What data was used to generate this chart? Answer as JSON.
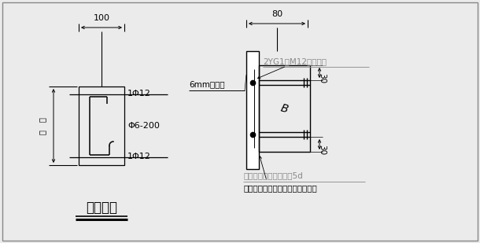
{
  "bg_color": "#ebebeb",
  "line_color": "#000000",
  "gray_color": "#888888",
  "title1": "抱框作法",
  "label_100": "100",
  "label_80": "80",
  "label_1phi12_top": "1Φ12",
  "label_phi6_200": "Φ6-200",
  "label_1phi12_bot": "1Φ12",
  "label_6mm": "6mm厚钢板",
  "label_2yg1": "2YG1型M12胀锚螺栓",
  "label_30a": "30",
  "label_30b": "30",
  "label_B": "B",
  "label_weld": "抱框主筋与钢板双面焊5d",
  "label_bottom": "下部锚入楼板，上部与系梁连接。",
  "label_wall_top": "墙",
  "label_wall_bot": "厚"
}
